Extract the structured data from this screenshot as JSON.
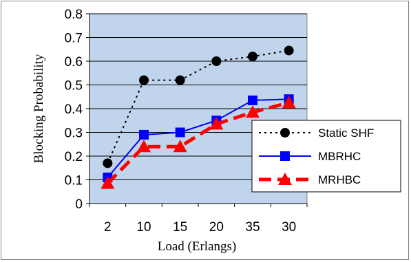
{
  "chart_data": {
    "type": "line",
    "title": "",
    "xlabel": "Load (Erlangs)",
    "ylabel": "Blocking Probability",
    "categories": [
      "2",
      "10",
      "15",
      "20",
      "35",
      "30"
    ],
    "ylim": [
      0,
      0.8
    ],
    "yticks": [
      "0",
      "0.1",
      "0.2",
      "0.3",
      "0.4",
      "0.5",
      "0.6",
      "0.7",
      "0.8"
    ],
    "grid": "horizontal",
    "plot_background": "#c0d4ec",
    "legend_position": "right",
    "series": [
      {
        "name": "Static SHF",
        "values": [
          0.17,
          0.52,
          0.52,
          0.6,
          0.62,
          0.645
        ],
        "color": "#000000",
        "style": "dotted",
        "marker": "circle"
      },
      {
        "name": "MBRHC",
        "values": [
          0.11,
          0.29,
          0.3,
          0.35,
          0.435,
          0.44
        ],
        "color": "#0000ff",
        "style": "solid",
        "marker": "square"
      },
      {
        "name": "MRHBC",
        "values": [
          0.085,
          0.24,
          0.24,
          0.335,
          0.385,
          0.425
        ],
        "color": "#ff0000",
        "style": "dashed",
        "marker": "triangle"
      }
    ]
  }
}
